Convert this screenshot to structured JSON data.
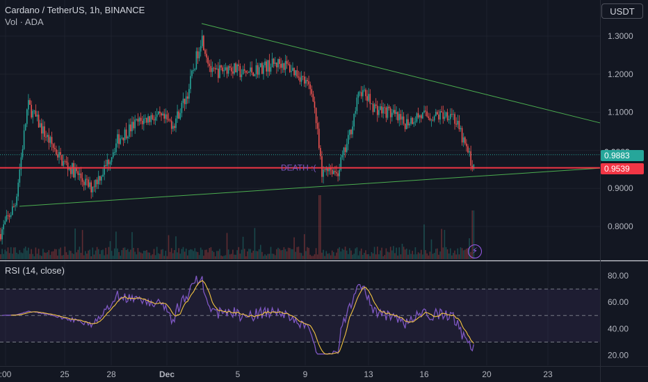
{
  "header": {
    "title": "Cardano / TetherUS, 1h, BINANCE",
    "volume_label": "Vol · ADA"
  },
  "currency_button": "USDT",
  "rsi_title": "RSI (14, close)",
  "death_label": "DEATH :(",
  "price_tags": {
    "partial_label": "0.9883",
    "current_price": "0.9883",
    "death_level": "0.9539"
  },
  "colors": {
    "background": "#131722",
    "up": "#26a69a",
    "down": "#ef5350",
    "trendline": "#4caf50",
    "death_line": "#f23645",
    "rsi_line": "#7e57c2",
    "rsi_ma": "#f5c542",
    "current_tag": "#26a69a",
    "death_tag": "#f23645"
  },
  "chart_data": [
    {
      "type": "candlestick",
      "title": "Cardano / TetherUS, 1h, BINANCE",
      "ylim": [
        0.72,
        1.35
      ],
      "y_ticks": [
        "1.3000",
        "1.2000",
        "1.1000",
        "1.0000",
        "0.9000",
        "0.8000"
      ],
      "x_ticks": [
        ":00",
        "25",
        "28",
        "Dec",
        "5",
        "9",
        "13",
        "16",
        "20",
        "23"
      ],
      "anchors": [
        [
          0,
          0.78
        ],
        [
          22,
          0.86
        ],
        [
          40,
          1.12
        ],
        [
          62,
          1.05
        ],
        [
          90,
          0.97
        ],
        [
          110,
          0.94
        ],
        [
          130,
          0.9
        ],
        [
          150,
          0.95
        ],
        [
          170,
          1.03
        ],
        [
          195,
          1.07
        ],
        [
          220,
          1.09
        ],
        [
          250,
          1.07
        ],
        [
          270,
          1.15
        ],
        [
          290,
          1.3
        ],
        [
          305,
          1.2
        ],
        [
          330,
          1.22
        ],
        [
          350,
          1.2
        ],
        [
          380,
          1.22
        ],
        [
          405,
          1.23
        ],
        [
          430,
          1.2
        ],
        [
          450,
          1.15
        ],
        [
          458,
          1.02
        ],
        [
          463,
          0.93
        ],
        [
          470,
          0.96
        ],
        [
          485,
          0.94
        ],
        [
          500,
          1.02
        ],
        [
          518,
          1.16
        ],
        [
          540,
          1.11
        ],
        [
          560,
          1.1
        ],
        [
          580,
          1.07
        ],
        [
          600,
          1.09
        ],
        [
          630,
          1.09
        ],
        [
          650,
          1.1
        ],
        [
          665,
          1.03
        ],
        [
          680,
          0.96
        ]
      ],
      "series": [
        {
          "name": "Death level",
          "value": 0.9539
        },
        {
          "name": "Current price",
          "value": 0.9883
        }
      ],
      "lines": [
        {
          "from": [
            290,
            1.333
          ],
          "to": [
            863,
            1.072
          ]
        },
        {
          "from": [
            28,
            0.853
          ],
          "to": [
            863,
            0.953
          ]
        }
      ],
      "annotations": [
        "DEATH :("
      ]
    },
    {
      "type": "line",
      "title": "RSI (14, close)",
      "ylim": [
        15,
        88
      ],
      "y_ticks": [
        "80.00",
        "60.00",
        "40.00",
        "20.00"
      ],
      "bands": [
        30,
        70
      ],
      "midline": 50
    }
  ]
}
